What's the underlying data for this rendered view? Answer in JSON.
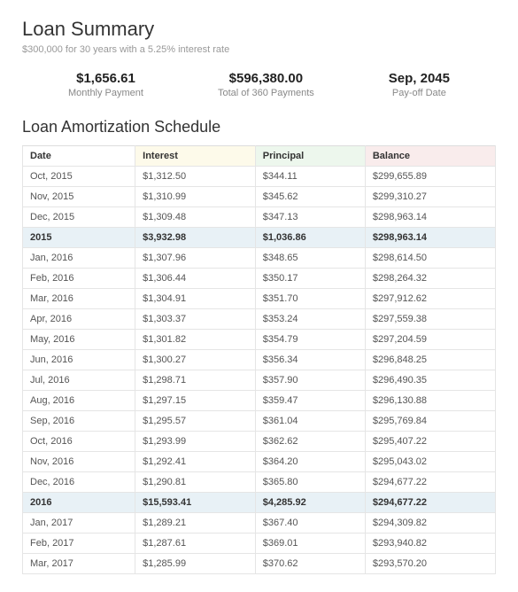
{
  "summary": {
    "title": "Loan Summary",
    "subtitle": "$300,000 for 30 years with a 5.25% interest rate",
    "items": [
      {
        "value": "$1,656.61",
        "label": "Monthly Payment"
      },
      {
        "value": "$596,380.00",
        "label": "Total of 360 Payments"
      },
      {
        "value": "Sep, 2045",
        "label": "Pay-off Date"
      }
    ]
  },
  "schedule": {
    "title": "Loan Amortization Schedule",
    "header_bg": {
      "date": "#ffffff",
      "interest": "#fdfaea",
      "principal": "#edf7ed",
      "balance": "#f9ecec"
    },
    "year_row_bg": "#e8f1f6",
    "columns": [
      "Date",
      "Interest",
      "Principal",
      "Balance"
    ],
    "rows": [
      {
        "type": "month",
        "cells": [
          "Oct, 2015",
          "$1,312.50",
          "$344.11",
          "$299,655.89"
        ]
      },
      {
        "type": "month",
        "cells": [
          "Nov, 2015",
          "$1,310.99",
          "$345.62",
          "$299,310.27"
        ]
      },
      {
        "type": "month",
        "cells": [
          "Dec, 2015",
          "$1,309.48",
          "$347.13",
          "$298,963.14"
        ]
      },
      {
        "type": "year",
        "cells": [
          "2015",
          "$3,932.98",
          "$1,036.86",
          "$298,963.14"
        ]
      },
      {
        "type": "month",
        "cells": [
          "Jan, 2016",
          "$1,307.96",
          "$348.65",
          "$298,614.50"
        ]
      },
      {
        "type": "month",
        "cells": [
          "Feb, 2016",
          "$1,306.44",
          "$350.17",
          "$298,264.32"
        ]
      },
      {
        "type": "month",
        "cells": [
          "Mar, 2016",
          "$1,304.91",
          "$351.70",
          "$297,912.62"
        ]
      },
      {
        "type": "month",
        "cells": [
          "Apr, 2016",
          "$1,303.37",
          "$353.24",
          "$297,559.38"
        ]
      },
      {
        "type": "month",
        "cells": [
          "May, 2016",
          "$1,301.82",
          "$354.79",
          "$297,204.59"
        ]
      },
      {
        "type": "month",
        "cells": [
          "Jun, 2016",
          "$1,300.27",
          "$356.34",
          "$296,848.25"
        ]
      },
      {
        "type": "month",
        "cells": [
          "Jul, 2016",
          "$1,298.71",
          "$357.90",
          "$296,490.35"
        ]
      },
      {
        "type": "month",
        "cells": [
          "Aug, 2016",
          "$1,297.15",
          "$359.47",
          "$296,130.88"
        ]
      },
      {
        "type": "month",
        "cells": [
          "Sep, 2016",
          "$1,295.57",
          "$361.04",
          "$295,769.84"
        ]
      },
      {
        "type": "month",
        "cells": [
          "Oct, 2016",
          "$1,293.99",
          "$362.62",
          "$295,407.22"
        ]
      },
      {
        "type": "month",
        "cells": [
          "Nov, 2016",
          "$1,292.41",
          "$364.20",
          "$295,043.02"
        ]
      },
      {
        "type": "month",
        "cells": [
          "Dec, 2016",
          "$1,290.81",
          "$365.80",
          "$294,677.22"
        ]
      },
      {
        "type": "year",
        "cells": [
          "2016",
          "$15,593.41",
          "$4,285.92",
          "$294,677.22"
        ]
      },
      {
        "type": "month",
        "cells": [
          "Jan, 2017",
          "$1,289.21",
          "$367.40",
          "$294,309.82"
        ]
      },
      {
        "type": "month",
        "cells": [
          "Feb, 2017",
          "$1,287.61",
          "$369.01",
          "$293,940.82"
        ]
      },
      {
        "type": "month",
        "cells": [
          "Mar, 2017",
          "$1,285.99",
          "$370.62",
          "$293,570.20"
        ]
      }
    ]
  }
}
